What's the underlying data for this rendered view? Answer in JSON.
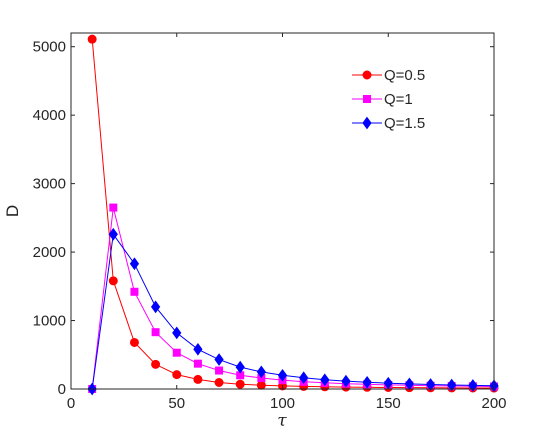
{
  "chart_data": {
    "type": "line",
    "title": "",
    "xlabel": "τ",
    "ylabel": "D",
    "xlim": [
      0,
      200
    ],
    "ylim": [
      0,
      5200
    ],
    "xticks": [
      0,
      50,
      100,
      150,
      200
    ],
    "yticks": [
      0,
      1000,
      2000,
      3000,
      4000,
      5000
    ],
    "xtick_labels": [
      "0",
      "50",
      "100",
      "150",
      "200"
    ],
    "ytick_labels": [
      "0",
      "1000",
      "2000",
      "3000",
      "4000",
      "5000"
    ],
    "grid": false,
    "legend_position": "top-right",
    "x": [
      10,
      20,
      30,
      40,
      50,
      60,
      70,
      80,
      90,
      100,
      110,
      120,
      130,
      140,
      150,
      160,
      170,
      180,
      190,
      200
    ],
    "series": [
      {
        "name": "Q=0.5",
        "color": "#ff0000",
        "marker": "circle",
        "values": [
          5110,
          1580,
          680,
          360,
          210,
          140,
          95,
          70,
          55,
          45,
          38,
          32,
          28,
          25,
          22,
          20,
          18,
          16,
          15,
          14
        ]
      },
      {
        "name": "Q=1",
        "color": "#ff00ff",
        "marker": "square",
        "values": [
          0,
          2650,
          1420,
          830,
          530,
          370,
          270,
          200,
          160,
          130,
          105,
          90,
          78,
          68,
          60,
          54,
          48,
          44,
          40,
          37
        ]
      },
      {
        "name": "Q=1.5",
        "color": "#0000ff",
        "marker": "diamond",
        "values": [
          0,
          2260,
          1830,
          1200,
          820,
          580,
          430,
          320,
          250,
          200,
          165,
          135,
          115,
          98,
          85,
          75,
          66,
          58,
          52,
          47
        ]
      }
    ]
  }
}
